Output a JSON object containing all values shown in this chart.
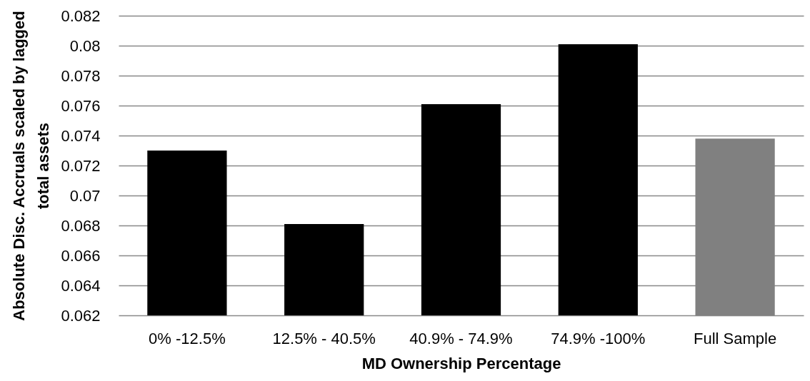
{
  "chart_data": {
    "type": "bar",
    "xlabel": "MD Ownership Percentage",
    "ylabel": "Absolute Disc. Accruals scaled by lagged total assets",
    "categories": [
      "0% -12.5%",
      "12.5% - 40.5%",
      "40.9% - 74.9%",
      "74.9% -100%",
      "Full Sample"
    ],
    "values": [
      0.073,
      0.0681,
      0.0761,
      0.0801,
      0.0738
    ],
    "colors": [
      "#000000",
      "#000000",
      "#000000",
      "#000000",
      "#808080"
    ],
    "ylim": [
      0.062,
      0.082
    ],
    "yticks": [
      0.062,
      0.064,
      0.066,
      0.068,
      0.07,
      0.072,
      0.074,
      0.076,
      0.078,
      0.08,
      0.082
    ],
    "grid": "y"
  }
}
